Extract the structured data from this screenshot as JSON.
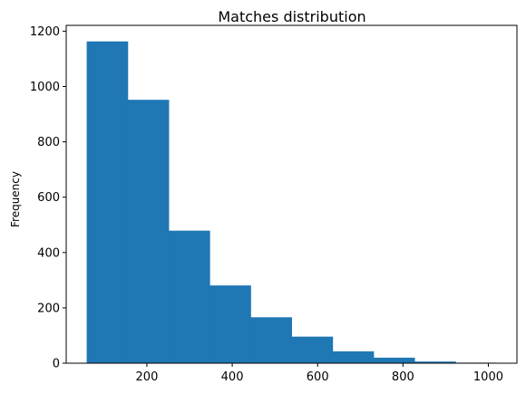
{
  "chart_data": {
    "type": "bar",
    "subtype": "histogram",
    "title": "Matches distribution",
    "xlabel": "",
    "ylabel": "Frequency",
    "bin_edges": [
      59,
      155,
      251,
      347,
      443,
      539,
      635,
      731,
      827,
      923,
      1019
    ],
    "values": [
      1163,
      952,
      479,
      281,
      166,
      96,
      43,
      20,
      6,
      2
    ],
    "xlim": [
      11,
      1067
    ],
    "ylim": [
      0,
      1221
    ],
    "xticks": [
      200,
      400,
      600,
      800,
      1000
    ],
    "yticks": [
      0,
      200,
      400,
      600,
      800,
      1000,
      1200
    ],
    "bar_color": "#1f77b4"
  }
}
